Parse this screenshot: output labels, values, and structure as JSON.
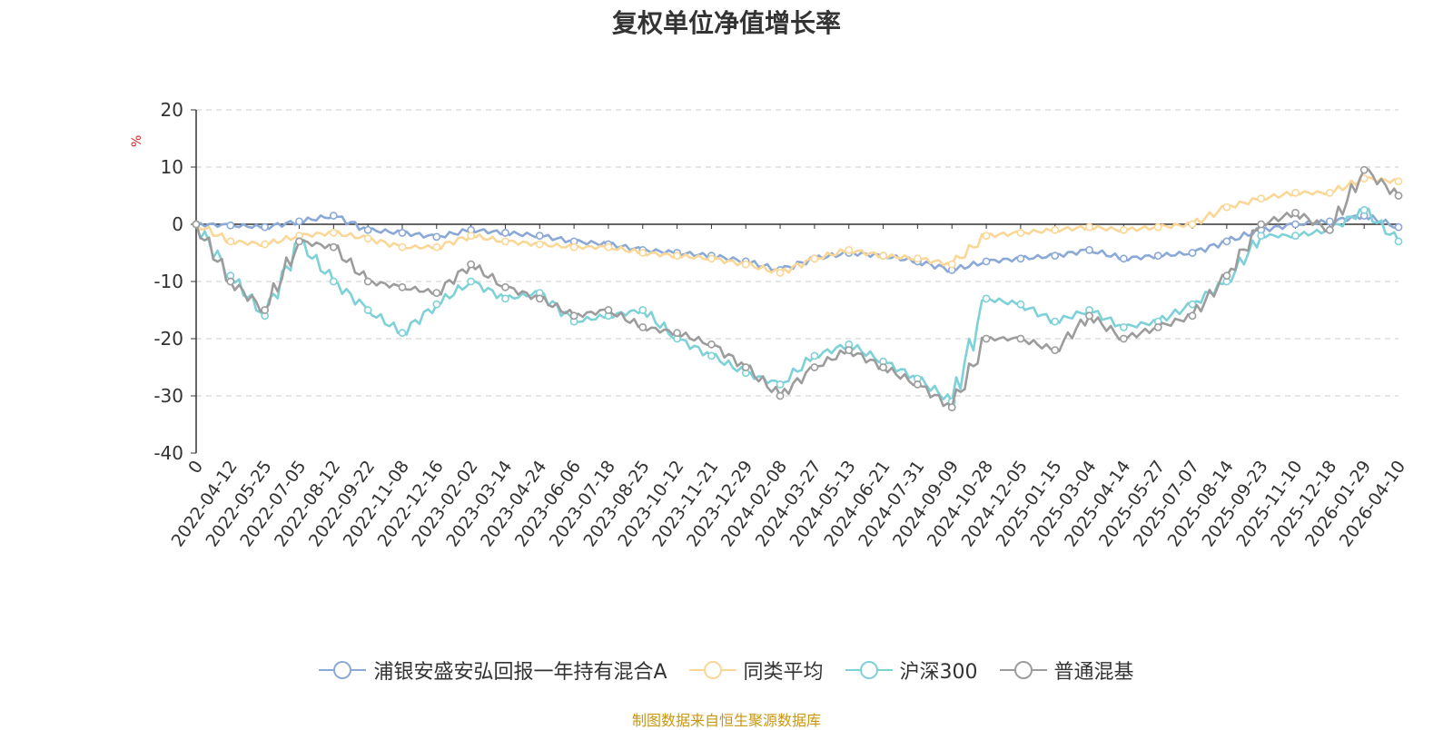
{
  "chart_data": {
    "type": "line",
    "title": "复权单位净值增长率",
    "ylabel": "%",
    "xlabel": "",
    "ylim": [
      -40,
      20
    ],
    "yticks": [
      20,
      10,
      0,
      -10,
      -20,
      -30,
      -40
    ],
    "categories": [
      "0",
      "2022-04-12",
      "2022-05-25",
      "2022-07-05",
      "2022-08-12",
      "2022-09-22",
      "2022-11-08",
      "2022-12-16",
      "2023-02-02",
      "2023-03-14",
      "2023-04-24",
      "2023-06-06",
      "2023-07-18",
      "2023-08-25",
      "2023-10-12",
      "2023-11-21",
      "2023-12-29",
      "2024-02-08",
      "2024-03-27",
      "2024-05-13",
      "2024-06-21",
      "2024-07-31",
      "2024-09-09",
      "2024-10-28",
      "2024-12-05",
      "2025-01-15",
      "2025-03-04",
      "2025-04-14",
      "2025-05-27",
      "2025-07-07",
      "2025-08-14",
      "2025-09-23",
      "2025-11-10",
      "2025-12-18",
      "2026-01-29",
      "2026-04-10"
    ],
    "series": [
      {
        "name": "浦银安盛安弘回报一年持有混合A",
        "color": "#8aa9d6",
        "values": [
          0,
          -0.2,
          -0.5,
          0.5,
          1.5,
          -1,
          -1.5,
          -2.2,
          -1,
          -1.5,
          -2,
          -3,
          -3.5,
          -4.5,
          -5,
          -5.5,
          -6.5,
          -8,
          -6,
          -5,
          -5.5,
          -6.5,
          -8,
          -6.5,
          -6,
          -5.5,
          -4.5,
          -6,
          -5.5,
          -5,
          -3,
          -1,
          0,
          0.5,
          1.5,
          -0.5
        ]
      },
      {
        "name": "同类平均",
        "color": "#fad797",
        "values": [
          0,
          -3,
          -3.5,
          -2,
          -1.5,
          -2.5,
          -4,
          -4,
          -2,
          -3,
          -3.5,
          -4,
          -4,
          -5,
          -5.5,
          -6,
          -7,
          -8.5,
          -6,
          -4.5,
          -5.5,
          -6,
          -7,
          -2,
          -1.5,
          -1,
          -0.5,
          -1,
          -0.5,
          0,
          3,
          4.5,
          5.5,
          5.5,
          8,
          7.5
        ]
      },
      {
        "name": "沪深300",
        "color": "#7dd1d7",
        "values": [
          0,
          -9,
          -16,
          -3,
          -10,
          -15,
          -19,
          -14,
          -10,
          -13,
          -12,
          -17,
          -16,
          -15,
          -20,
          -23,
          -26,
          -28,
          -23,
          -21,
          -24,
          -27,
          -31,
          -13,
          -14,
          -17,
          -15,
          -18,
          -17,
          -14,
          -10,
          -2,
          -2,
          -1,
          2.5,
          -3
        ]
      },
      {
        "name": "普通混基",
        "color": "#9c9c9c",
        "values": [
          0,
          -10,
          -15,
          -3,
          -4,
          -10,
          -11,
          -12,
          -7,
          -11,
          -13,
          -16,
          -15,
          -18,
          -19,
          -21,
          -25,
          -30,
          -25,
          -22,
          -25,
          -28,
          -32,
          -20,
          -20,
          -22,
          -16,
          -20,
          -18,
          -16,
          -9,
          0,
          2,
          -1,
          9.5,
          5
        ]
      }
    ]
  },
  "legend_label": "%",
  "footer": "制图数据来自恒生聚源数据库"
}
